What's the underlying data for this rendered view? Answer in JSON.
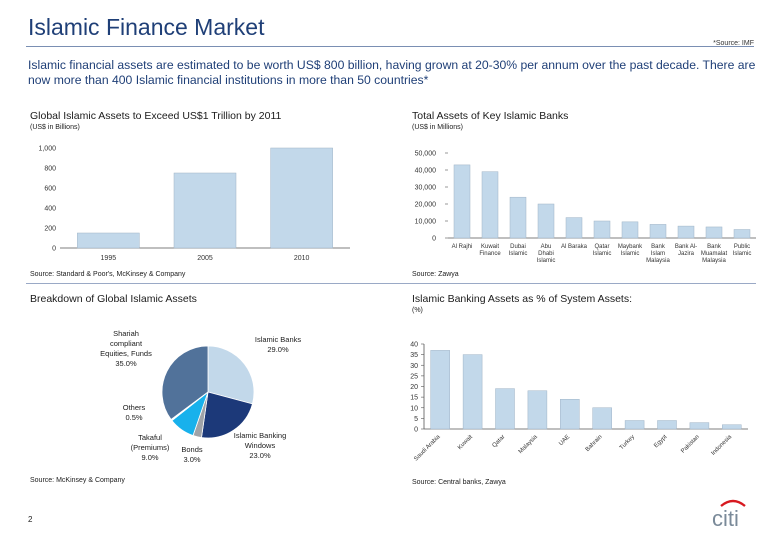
{
  "header": {
    "title": "Islamic Finance Market",
    "source_note": "*Source: IMF"
  },
  "intro": "Islamic financial assets are estimated to be worth US$ 800 billion, having grown at 20-30% per annum over the past decade. There are now more than 400 Islamic financial institutions in more than 50 countries*",
  "charts": {
    "assets": {
      "title": "Global Islamic Assets to Exceed US$1 Trillion by 2011",
      "subtitle": "(US$ in Billions)",
      "source": "Source: Standard & Poor's, McKinsey & Company"
    },
    "banks": {
      "title": "Total Assets of Key Islamic Banks",
      "subtitle": "(US$ in Millions)",
      "source": "Source: Zawya"
    },
    "breakdown": {
      "title": "Breakdown of Global Islamic Assets",
      "source": "Source: McKinsey & Company"
    },
    "system": {
      "title": "Islamic Banking Assets as % of System Assets:",
      "subtitle": "(%)",
      "source": "Source: Central banks, Zawya"
    }
  },
  "chart_data": [
    {
      "type": "bar",
      "title": "Global Islamic Assets to Exceed US$1 Trillion by 2011",
      "categories": [
        "1995",
        "2005",
        "2010"
      ],
      "values": [
        150,
        750,
        1000
      ],
      "ylim": [
        0,
        1000
      ],
      "yticks": [
        "0",
        "200",
        "400",
        "600",
        "800",
        "1,000"
      ],
      "grid": false,
      "color": "#c2d8ea"
    },
    {
      "type": "bar",
      "title": "Total Assets of Key Islamic Banks",
      "categories": [
        [
          "Al Rajhi"
        ],
        [
          "Kuwait",
          "Finance"
        ],
        [
          "Dubai",
          "Islamic"
        ],
        [
          "Abu",
          "Dhabi",
          "Islamic"
        ],
        [
          "Al Baraka"
        ],
        [
          "Qatar",
          "Islamic"
        ],
        [
          "Maybank",
          "Islamic"
        ],
        [
          "Bank",
          "Islam",
          "Malaysia"
        ],
        [
          "Bank Al-",
          "Jazira"
        ],
        [
          "Bank",
          "Muamalat",
          "Malaysia"
        ],
        [
          "Public",
          "Islamic"
        ]
      ],
      "values": [
        43000,
        39000,
        24000,
        20000,
        12000,
        10000,
        9500,
        8000,
        7000,
        6500,
        5000
      ],
      "ylim": [
        0,
        50000
      ],
      "yticks": [
        "0",
        "10,000",
        "20,000",
        "30,000",
        "40,000",
        "50,000"
      ],
      "grid": false,
      "color": "#c2d8ea"
    },
    {
      "type": "pie",
      "title": "Breakdown of Global Islamic Assets",
      "slices": [
        {
          "label": [
            "Islamic Banks",
            "29.0%"
          ],
          "value": 29.0,
          "color": "#c2d8ea"
        },
        {
          "label": [
            "Islamic Banking",
            "Windows",
            "23.0%"
          ],
          "value": 23.0,
          "color": "#1c3979"
        },
        {
          "label": [
            "Bonds",
            "3.0%"
          ],
          "value": 3.0,
          "color": "#9fa3a8"
        },
        {
          "label": [
            "Takaful",
            "(Premiums)",
            "9.0%"
          ],
          "value": 9.0,
          "color": "#18b1ec"
        },
        {
          "label": [
            "Others",
            "0.5%"
          ],
          "value": 0.5,
          "color": "#ffffff"
        },
        {
          "label": [
            "Shariah",
            "compliant",
            "Equities, Funds",
            "35.0%"
          ],
          "value": 35.0,
          "color": "#51729a"
        }
      ]
    },
    {
      "type": "bar",
      "title": "Islamic Banking Assets as % of System Assets:",
      "categories": [
        "Saudi Arabia",
        "Kuwait",
        "Qatar",
        "Malaysia",
        "UAE",
        "Bahrain",
        "Turkey",
        "Egypt",
        "Pakistan",
        "Indonesia"
      ],
      "values": [
        37,
        35,
        19,
        18,
        14,
        10,
        4,
        4,
        3,
        2
      ],
      "ylim": [
        0,
        40
      ],
      "yticks": [
        "0",
        "5",
        "10",
        "15",
        "20",
        "25",
        "30",
        "35",
        "40"
      ],
      "grid": false,
      "color": "#c2d8ea"
    }
  ],
  "footer": {
    "page_number": "2",
    "logo_text": "citi"
  }
}
